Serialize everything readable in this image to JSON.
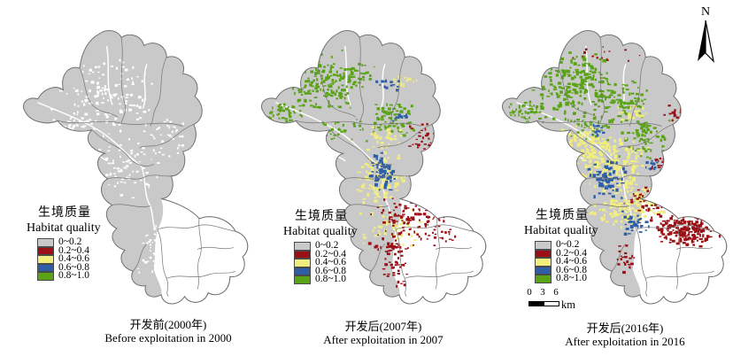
{
  "colors": {
    "background": "#ffffff",
    "base_gray": "#c9c9c9",
    "basin_outline": "#8f8f8f",
    "admin_boundary": "#757575",
    "river": "#ffffff",
    "text": "#000000"
  },
  "north_arrow": {
    "label": "N"
  },
  "scale_bar": {
    "ticks": [
      "0",
      "3",
      "6"
    ],
    "unit": "km"
  },
  "legend": {
    "title_zh": "生境质量",
    "title_en": "Habitat quality",
    "classes": [
      {
        "label": "0~0.2",
        "color": "#c9c9c9"
      },
      {
        "label": "0.2~0.4",
        "color": "#9a1016"
      },
      {
        "label": "0.4~0.6",
        "color": "#f2ee7e"
      },
      {
        "label": "0.6~0.8",
        "color": "#2e5ea5"
      },
      {
        "label": "0.8~1.0",
        "color": "#5aa317"
      }
    ]
  },
  "maps": [
    {
      "id": "before-2000",
      "caption_zh": "开发前(2000年)",
      "caption_en": "Before exploitation in 2000",
      "seed": 7,
      "speckle_layers": [
        {
          "class": "no-data-texture",
          "color": "#ffffff",
          "regions": [
            [
              95,
              70,
              62,
              46,
              130,
              2.0
            ],
            [
              120,
              150,
              42,
              42,
              80,
              1.8
            ],
            [
              58,
              108,
              30,
              17,
              45,
              1.8
            ],
            [
              150,
              250,
              24,
              34,
              45,
              1.8
            ],
            [
              165,
              120,
              25,
              25,
              35,
              1.7
            ]
          ]
        }
      ]
    },
    {
      "id": "after-2007",
      "caption_zh": "开发后(2007年)",
      "caption_en": "After exploitation in 2007",
      "seed": 21,
      "speckle_layers": [
        {
          "class": "0.8~1.0",
          "color": "#5aa317",
          "regions": [
            [
              72,
              60,
              42,
              38,
              160,
              2.2
            ],
            [
              30,
              92,
              24,
              13,
              45,
              2.0
            ],
            [
              112,
              52,
              20,
              16,
              35,
              2.0
            ],
            [
              150,
              100,
              28,
              22,
              75,
              2.2
            ],
            [
              95,
              110,
              30,
              15,
              30,
              2.0
            ]
          ]
        },
        {
          "class": "0.4~0.6",
          "color": "#f2ee7e",
          "regions": [
            [
              140,
              120,
              22,
              14,
              35,
              2.0
            ],
            [
              135,
              165,
              30,
              34,
              120,
              2.3
            ],
            [
              150,
              222,
              40,
              22,
              60,
              2.0
            ],
            [
              160,
              60,
              18,
              10,
              18,
              2.0
            ]
          ]
        },
        {
          "class": "0.6~0.8",
          "color": "#2e5ea5",
          "regions": [
            [
              137,
              158,
              17,
              22,
              65,
              2.4
            ],
            [
              145,
              62,
              14,
              8,
              16,
              2.0
            ],
            [
              158,
              98,
              10,
              8,
              12,
              2.0
            ]
          ]
        },
        {
          "class": "0.2~0.4",
          "color": "#9a1016",
          "regions": [
            [
              168,
              212,
              44,
              26,
              105,
              2.0
            ],
            [
              152,
              262,
              16,
              26,
              35,
              2.0
            ],
            [
              184,
              122,
              20,
              22,
              32,
              1.9
            ],
            [
              150,
              240,
              30,
              12,
              30,
              2.0
            ],
            [
              205,
              230,
              20,
              12,
              20,
              1.8
            ]
          ]
        }
      ]
    },
    {
      "id": "after-2016",
      "caption_zh": "开发后(2016年)",
      "caption_en": "After exploitation in 2016",
      "seed": 33,
      "speckle_layers": [
        {
          "class": "0.8~1.0",
          "color": "#5aa317",
          "regions": [
            [
              80,
              62,
              48,
              40,
              210,
              2.3
            ],
            [
              30,
              92,
              24,
              13,
              50,
              2.0
            ],
            [
              135,
              80,
              35,
              28,
              95,
              2.2
            ],
            [
              160,
              120,
              30,
              25,
              75,
              2.2
            ],
            [
              100,
              110,
              28,
              15,
              40,
              2.0
            ]
          ]
        },
        {
          "class": "0.4~0.6",
          "color": "#f2ee7e",
          "regions": [
            [
              120,
              150,
              48,
              35,
              210,
              2.4
            ],
            [
              90,
              125,
              30,
              20,
              70,
              2.2
            ],
            [
              160,
              190,
              40,
              25,
              95,
              2.3
            ],
            [
              130,
              200,
              30,
              25,
              70,
              2.2
            ],
            [
              145,
              95,
              20,
              12,
              25,
              2.0
            ]
          ]
        },
        {
          "class": "0.6~0.8",
          "color": "#2e5ea5",
          "regions": [
            [
              120,
              165,
              22,
              25,
              65,
              2.5
            ],
            [
              150,
              215,
              18,
              14,
              35,
              2.3
            ],
            [
              170,
              150,
              12,
              10,
              15,
              2.0
            ],
            [
              108,
              112,
              12,
              8,
              12,
              2.0
            ]
          ]
        },
        {
          "class": "0.2~0.4",
          "color": "#9a1016",
          "regions": [
            [
              205,
              222,
              40,
              20,
              180,
              2.3
            ],
            [
              170,
              190,
              35,
              15,
              55,
              2.0
            ],
            [
              190,
              150,
              22,
              18,
              45,
              2.0
            ],
            [
              142,
              252,
              13,
              20,
              22,
              2.0
            ],
            [
              120,
              30,
              40,
              10,
              15,
              1.8
            ],
            [
              195,
              95,
              15,
              12,
              18,
              1.8
            ]
          ]
        }
      ]
    }
  ]
}
